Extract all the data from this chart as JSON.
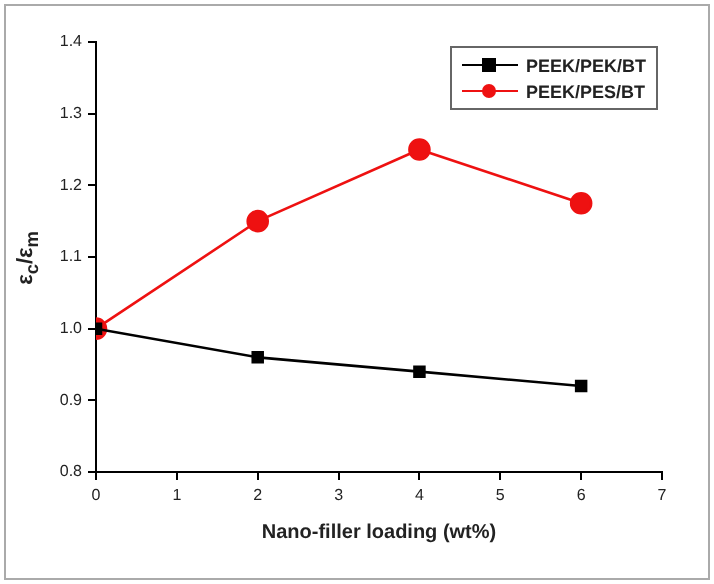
{
  "chart_data": {
    "type": "line",
    "xlabel": "Nano-filler loading (wt%)",
    "ylabel": "ε$_{c}$/ε$_{m}$",
    "xlim": [
      0,
      7
    ],
    "xticks": [
      0,
      1,
      2,
      3,
      4,
      5,
      6,
      7
    ],
    "ylim": [
      0.8,
      1.4
    ],
    "yticks": [
      0.8,
      0.9,
      {
        "value": 1.0,
        "label": "1.0"
      },
      1.1,
      1.2,
      1.3,
      1.4
    ],
    "x": [
      0,
      2,
      4,
      6
    ],
    "series": [
      {
        "name": "PEEK/PEK/BT",
        "color": "#000000",
        "values": [
          1.0,
          0.96,
          0.94,
          0.92
        ],
        "marker": "square"
      },
      {
        "name": "PEEK/PES/BT",
        "color": "#ee1111",
        "values": [
          1.0,
          1.15,
          1.25,
          1.175
        ],
        "marker": "circle"
      }
    ],
    "grid": false,
    "legend": "top right"
  }
}
